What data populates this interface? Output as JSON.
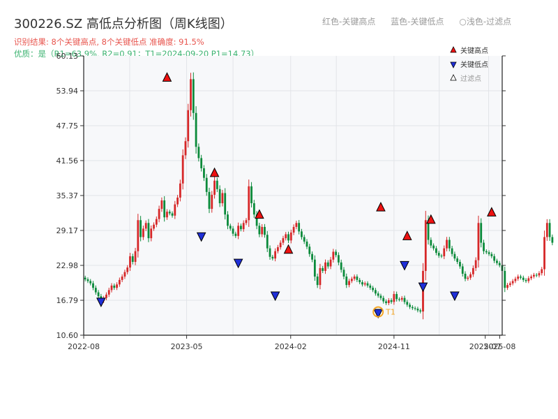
{
  "header": {
    "title": "300226.SZ 高低点分析图（周K线图）",
    "result": "识别结果: 8个关键高点, 8个关键低点  准确度: 91.5%",
    "quality": "优质：是（R1=63.9%, R2=0.91；T1=2024-09-20 P1=14.73）",
    "legend_red": "红色-关键高点",
    "legend_blue": "蓝色-关键低点",
    "legend_light": "○浅色-过滤点"
  },
  "colors": {
    "up": "#d62728",
    "down": "#0a8a3a",
    "high_marker": "#ee1111",
    "low_marker": "#1f2fd8",
    "t1": "#f5a623",
    "plot_bg": "#f7f8fa",
    "grid": "#e2e4e8"
  },
  "chart_data": {
    "type": "candlestick",
    "y_ticks": [
      10.6,
      16.79,
      22.98,
      29.17,
      35.37,
      41.56,
      47.75,
      53.94,
      60.13
    ],
    "ylim": [
      10.6,
      60.13
    ],
    "x_ticks": [
      {
        "date": "2022-08",
        "label": "2022-08"
      },
      {
        "date": "2023-05",
        "label": "2023-05"
      },
      {
        "date": "2024-02",
        "label": "2024-02"
      },
      {
        "date": "2024-11",
        "label": "2024-11"
      },
      {
        "date": "2025-07",
        "label": "2025-07"
      },
      {
        "date": "2025-08",
        "label": "2025-08"
      }
    ],
    "xlim": [
      "2022-08-01",
      "2025-08-15"
    ],
    "grid": true,
    "legend_position": "top-right",
    "legend": [
      "关键高点",
      "关键低点",
      "过滤点"
    ],
    "close": [
      20.5,
      20.2,
      19.8,
      19.0,
      18.2,
      17.5,
      16.7,
      17.2,
      17.8,
      18.6,
      19.4,
      19.0,
      19.6,
      20.4,
      21.0,
      21.8,
      22.6,
      24.6,
      23.6,
      25.5,
      31.0,
      28.0,
      29.5,
      30.5,
      27.8,
      29.5,
      30.2,
      31.2,
      33.0,
      34.5,
      31.5,
      32.5,
      32.2,
      31.8,
      33.8,
      35.0,
      37.5,
      42.5,
      45.0,
      50.5,
      56.0,
      50.0,
      44.0,
      42.0,
      40.2,
      38.5,
      36.0,
      33.0,
      35.5,
      38.0,
      36.5,
      34.0,
      35.8,
      32.0,
      30.0,
      29.5,
      28.6,
      28.2,
      30.0,
      29.4,
      30.5,
      31.0,
      37.0,
      34.0,
      32.0,
      30.0,
      28.5,
      29.8,
      28.4,
      26.0,
      24.5,
      24.2,
      25.5,
      26.2,
      27.0,
      27.8,
      28.5,
      27.4,
      28.8,
      29.8,
      30.5,
      29.0,
      28.0,
      27.2,
      26.3,
      25.0,
      24.0,
      21.0,
      19.5,
      22.5,
      22.0,
      23.5,
      22.8,
      24.0,
      25.4,
      24.8,
      23.5,
      22.2,
      21.0,
      19.5,
      20.2,
      20.6,
      21.0,
      20.4,
      20.0,
      19.6,
      19.8,
      19.4,
      19.0,
      18.6,
      18.0,
      17.6,
      17.2,
      16.6,
      16.3,
      16.8,
      16.5,
      17.9,
      17.0,
      16.9,
      17.2,
      16.5,
      16.0,
      15.6,
      15.4,
      15.3,
      15.0,
      14.8,
      22.0,
      31.0,
      27.5,
      26.5,
      26.0,
      25.2,
      24.7,
      24.6,
      26.0,
      27.5,
      26.0,
      25.0,
      24.2,
      23.6,
      22.8,
      21.5,
      20.6,
      20.8,
      21.4,
      22.5,
      23.9,
      30.5,
      27.0,
      25.5,
      25.3,
      25.0,
      24.6,
      23.8,
      23.4,
      23.0,
      22.0,
      19.0,
      19.5,
      19.8,
      20.2,
      20.6,
      21.0,
      20.8,
      20.4,
      20.2,
      20.7,
      21.0,
      21.3,
      21.2,
      21.6,
      22.3,
      28.0,
      30.5,
      28.0,
      27.0
    ],
    "key_highs": [
      {
        "date": "2023-03-10",
        "price": 55.5
      },
      {
        "date": "2023-07-14",
        "price": 38.6
      },
      {
        "date": "2023-11-10",
        "price": 31.2
      },
      {
        "date": "2024-01-26",
        "price": 25.0
      },
      {
        "date": "2024-09-27",
        "price": 32.5
      },
      {
        "date": "2024-12-06",
        "price": 27.4
      },
      {
        "date": "2025-02-07",
        "price": 30.3
      },
      {
        "date": "2025-07-18",
        "price": 31.6
      }
    ],
    "key_lows": [
      {
        "date": "2022-09-16",
        "price": 17.3
      },
      {
        "date": "2023-06-09",
        "price": 28.9
      },
      {
        "date": "2023-09-15",
        "price": 24.2
      },
      {
        "date": "2023-12-22",
        "price": 18.4
      },
      {
        "date": "2024-09-20",
        "price": 15.3
      },
      {
        "date": "2024-11-29",
        "price": 23.8
      },
      {
        "date": "2025-01-17",
        "price": 20.0
      },
      {
        "date": "2025-04-11",
        "price": 18.4
      }
    ],
    "t1": {
      "date": "2024-09-20",
      "price": 14.73,
      "label": "T1"
    }
  }
}
